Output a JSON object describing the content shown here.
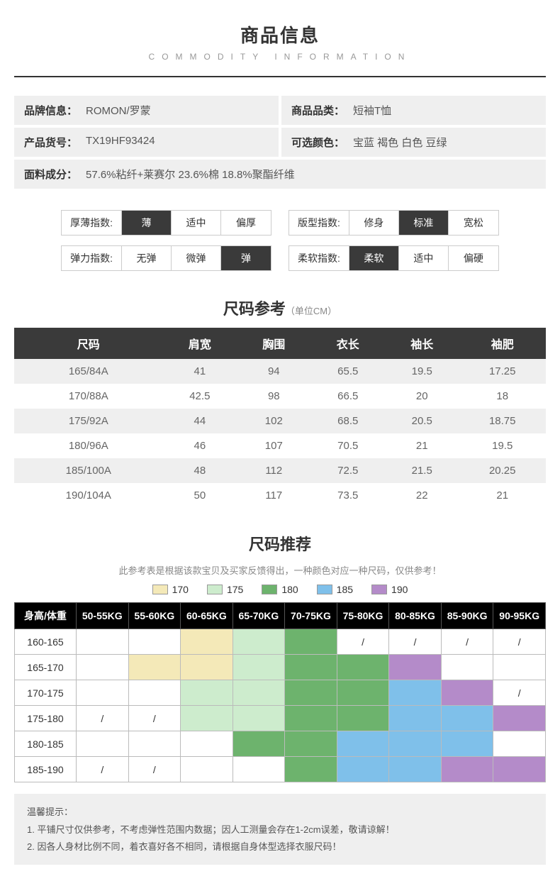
{
  "header": {
    "title_cn": "商品信息",
    "title_en": "COMMODITY INFORMATION"
  },
  "info": {
    "brand_label": "品牌信息：",
    "brand_value": "ROMON/罗蒙",
    "category_label": "商品品类：",
    "category_value": "短袖T恤",
    "sku_label": "产品货号：",
    "sku_value": "TX19HF93424",
    "color_label": "可选颜色：",
    "color_value": "宝蓝 褐色 白色 豆绿",
    "fabric_label": "面料成分：",
    "fabric_value": "57.6%粘纤+莱赛尔 23.6%棉 18.8%聚酯纤维"
  },
  "indices": [
    {
      "label": "厚薄指数:",
      "opts": [
        "薄",
        "适中",
        "偏厚"
      ],
      "selected": 0
    },
    {
      "label": "版型指数:",
      "opts": [
        "修身",
        "标准",
        "宽松"
      ],
      "selected": 1
    },
    {
      "label": "弹力指数:",
      "opts": [
        "无弹",
        "微弹",
        "弹"
      ],
      "selected": 2
    },
    {
      "label": "柔软指数:",
      "opts": [
        "柔软",
        "适中",
        "偏硬"
      ],
      "selected": 0
    }
  ],
  "size_ref": {
    "title": "尺码参考",
    "unit": "（单位CM）",
    "columns": [
      "尺码",
      "肩宽",
      "胸围",
      "衣长",
      "袖长",
      "袖肥"
    ],
    "rows": [
      [
        "165/84A",
        "41",
        "94",
        "65.5",
        "19.5",
        "17.25"
      ],
      [
        "170/88A",
        "42.5",
        "98",
        "66.5",
        "20",
        "18"
      ],
      [
        "175/92A",
        "44",
        "102",
        "68.5",
        "20.5",
        "18.75"
      ],
      [
        "180/96A",
        "46",
        "107",
        "70.5",
        "21",
        "19.5"
      ],
      [
        "185/100A",
        "48",
        "112",
        "72.5",
        "21.5",
        "20.25"
      ],
      [
        "190/104A",
        "50",
        "117",
        "73.5",
        "22",
        "21"
      ]
    ]
  },
  "size_rec": {
    "title": "尺码推荐",
    "note": "此参考表是根据该款宝贝及买家反馈得出，一种颜色对应一种尺码，仅供参考！",
    "legend": [
      {
        "label": "170",
        "color": "#f4e9b8"
      },
      {
        "label": "175",
        "color": "#cdeccd"
      },
      {
        "label": "180",
        "color": "#6db36d"
      },
      {
        "label": "185",
        "color": "#7fc0ea"
      },
      {
        "label": "190",
        "color": "#b48bc9"
      }
    ],
    "col_header_first": "身高/体重",
    "weight_cols": [
      "50-55KG",
      "55-60KG",
      "60-65KG",
      "65-70KG",
      "70-75KG",
      "75-80KG",
      "80-85KG",
      "85-90KG",
      "90-95KG"
    ],
    "height_rows": [
      "160-165",
      "165-170",
      "170-175",
      "175-180",
      "180-185",
      "185-190"
    ],
    "cells": [
      [
        "",
        "",
        "#f4e9b8",
        "#cdeccd",
        "#6db36d",
        "/",
        "/",
        "/",
        "/"
      ],
      [
        "",
        "#f4e9b8",
        "#f4e9b8",
        "#cdeccd",
        "#6db36d",
        "#6db36d",
        "#b48bc9",
        "",
        ""
      ],
      [
        "",
        "",
        "#cdeccd",
        "#cdeccd",
        "#6db36d",
        "#6db36d",
        "#7fc0ea",
        "#b48bc9",
        "/"
      ],
      [
        "/",
        "/",
        "#cdeccd",
        "#cdeccd",
        "#6db36d",
        "#6db36d",
        "#7fc0ea",
        "#7fc0ea",
        "#b48bc9"
      ],
      [
        "",
        "",
        "",
        "#6db36d",
        "#6db36d",
        "#7fc0ea",
        "#7fc0ea",
        "#7fc0ea",
        ""
      ],
      [
        "/",
        "/",
        "",
        "",
        "#6db36d",
        "#7fc0ea",
        "#7fc0ea",
        "#b48bc9",
        "#b48bc9"
      ]
    ]
  },
  "tips": {
    "title": "温馨提示：",
    "lines": [
      "1. 平铺尺寸仅供参考，不考虑弹性范围内数据；因人工测量会存在1-2cm误差，敬请谅解！",
      "2. 因各人身材比例不同，着衣喜好各不相同，请根据自身体型选择衣服尺码！"
    ]
  }
}
